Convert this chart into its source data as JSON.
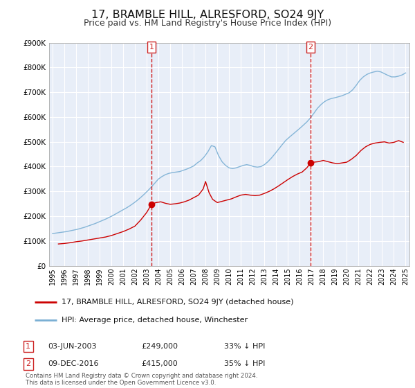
{
  "title": "17, BRAMBLE HILL, ALRESFORD, SO24 9JY",
  "subtitle": "Price paid vs. HM Land Registry's House Price Index (HPI)",
  "title_fontsize": 11.5,
  "subtitle_fontsize": 9,
  "background_color": "#ffffff",
  "plot_bg_color": "#e8eef8",
  "grid_color": "#ffffff",
  "red_color": "#cc0000",
  "blue_color": "#7aafd4",
  "ylim": [
    0,
    900000
  ],
  "yticks": [
    0,
    100000,
    200000,
    300000,
    400000,
    500000,
    600000,
    700000,
    800000,
    900000
  ],
  "ytick_labels": [
    "£0",
    "£100K",
    "£200K",
    "£300K",
    "£400K",
    "£500K",
    "£600K",
    "£700K",
    "£800K",
    "£900K"
  ],
  "xlim_start": 1994.7,
  "xlim_end": 2025.3,
  "xticks": [
    1995,
    1996,
    1997,
    1998,
    1999,
    2000,
    2001,
    2002,
    2003,
    2004,
    2005,
    2006,
    2007,
    2008,
    2009,
    2010,
    2011,
    2012,
    2013,
    2014,
    2015,
    2016,
    2017,
    2018,
    2019,
    2020,
    2021,
    2022,
    2023,
    2024,
    2025
  ],
  "marker1_x": 2003.42,
  "marker1_y": 249000,
  "marker2_x": 2016.93,
  "marker2_y": 415000,
  "vline1_x": 2003.42,
  "vline2_x": 2016.93,
  "legend_label_red": "17, BRAMBLE HILL, ALRESFORD, SO24 9JY (detached house)",
  "legend_label_blue": "HPI: Average price, detached house, Winchester",
  "table_row1": [
    "1",
    "03-JUN-2003",
    "£249,000",
    "33% ↓ HPI"
  ],
  "table_row2": [
    "2",
    "09-DEC-2016",
    "£415,000",
    "35% ↓ HPI"
  ],
  "footer_text": "Contains HM Land Registry data © Crown copyright and database right 2024.\nThis data is licensed under the Open Government Licence v3.0.",
  "red_series_x": [
    1995.5,
    1996.0,
    1996.5,
    1997.0,
    1997.5,
    1998.0,
    1998.5,
    1999.0,
    1999.5,
    2000.0,
    2000.5,
    2001.0,
    2001.5,
    2002.0,
    2002.5,
    2003.0,
    2003.42,
    2003.8,
    2004.2,
    2004.6,
    2005.0,
    2005.4,
    2005.8,
    2006.2,
    2006.6,
    2007.0,
    2007.4,
    2007.8,
    2008.0,
    2008.3,
    2008.6,
    2009.0,
    2009.4,
    2009.8,
    2010.2,
    2010.6,
    2011.0,
    2011.4,
    2011.8,
    2012.2,
    2012.6,
    2013.0,
    2013.4,
    2013.8,
    2014.2,
    2014.6,
    2015.0,
    2015.4,
    2015.8,
    2016.2,
    2016.6,
    2016.93,
    2017.2,
    2017.6,
    2018.0,
    2018.4,
    2018.8,
    2019.2,
    2019.6,
    2020.0,
    2020.4,
    2020.8,
    2021.2,
    2021.6,
    2022.0,
    2022.4,
    2022.8,
    2023.2,
    2023.6,
    2024.0,
    2024.4,
    2024.8
  ],
  "red_series_y": [
    88000,
    90000,
    93000,
    97000,
    100000,
    104000,
    108000,
    112000,
    116000,
    122000,
    130000,
    138000,
    148000,
    160000,
    185000,
    215000,
    249000,
    255000,
    258000,
    252000,
    248000,
    250000,
    253000,
    258000,
    265000,
    275000,
    285000,
    310000,
    340000,
    295000,
    268000,
    255000,
    260000,
    265000,
    270000,
    278000,
    285000,
    288000,
    285000,
    283000,
    285000,
    292000,
    300000,
    310000,
    322000,
    335000,
    348000,
    360000,
    370000,
    378000,
    395000,
    415000,
    418000,
    420000,
    425000,
    420000,
    415000,
    412000,
    415000,
    418000,
    430000,
    445000,
    465000,
    480000,
    490000,
    495000,
    498000,
    500000,
    495000,
    498000,
    505000,
    498000
  ],
  "blue_series_x": [
    1995.0,
    1995.3,
    1995.6,
    1995.9,
    1996.2,
    1996.5,
    1996.8,
    1997.1,
    1997.4,
    1997.7,
    1998.0,
    1998.3,
    1998.6,
    1998.9,
    1999.2,
    1999.5,
    1999.8,
    2000.1,
    2000.4,
    2000.7,
    2001.0,
    2001.3,
    2001.6,
    2001.9,
    2002.2,
    2002.5,
    2002.8,
    2003.1,
    2003.4,
    2003.7,
    2004.0,
    2004.3,
    2004.6,
    2004.9,
    2005.2,
    2005.5,
    2005.8,
    2006.1,
    2006.4,
    2006.7,
    2007.0,
    2007.3,
    2007.6,
    2007.9,
    2008.2,
    2008.5,
    2008.8,
    2009.1,
    2009.4,
    2009.7,
    2010.0,
    2010.3,
    2010.6,
    2010.9,
    2011.2,
    2011.5,
    2011.8,
    2012.1,
    2012.4,
    2012.7,
    2013.0,
    2013.3,
    2013.6,
    2013.9,
    2014.2,
    2014.5,
    2014.8,
    2015.1,
    2015.4,
    2015.7,
    2016.0,
    2016.3,
    2016.6,
    2016.9,
    2017.2,
    2017.5,
    2017.8,
    2018.1,
    2018.4,
    2018.7,
    2019.0,
    2019.3,
    2019.6,
    2019.9,
    2020.2,
    2020.5,
    2020.8,
    2021.1,
    2021.4,
    2021.7,
    2022.0,
    2022.3,
    2022.6,
    2022.9,
    2023.2,
    2023.5,
    2023.8,
    2024.1,
    2024.4,
    2024.7,
    2025.0
  ],
  "blue_series_y": [
    130000,
    132000,
    134000,
    136000,
    138000,
    141000,
    144000,
    147000,
    151000,
    155000,
    160000,
    165000,
    170000,
    176000,
    182000,
    188000,
    195000,
    202000,
    210000,
    218000,
    226000,
    234000,
    243000,
    253000,
    264000,
    276000,
    289000,
    303000,
    318000,
    334000,
    350000,
    360000,
    368000,
    373000,
    376000,
    378000,
    380000,
    385000,
    390000,
    396000,
    403000,
    415000,
    425000,
    440000,
    460000,
    485000,
    480000,
    445000,
    420000,
    405000,
    395000,
    392000,
    395000,
    400000,
    405000,
    408000,
    405000,
    400000,
    398000,
    400000,
    408000,
    420000,
    435000,
    452000,
    470000,
    488000,
    505000,
    518000,
    530000,
    542000,
    554000,
    567000,
    580000,
    596000,
    615000,
    635000,
    650000,
    662000,
    670000,
    675000,
    678000,
    682000,
    686000,
    692000,
    698000,
    710000,
    728000,
    748000,
    762000,
    772000,
    778000,
    782000,
    785000,
    782000,
    775000,
    768000,
    762000,
    762000,
    765000,
    770000,
    778000
  ]
}
